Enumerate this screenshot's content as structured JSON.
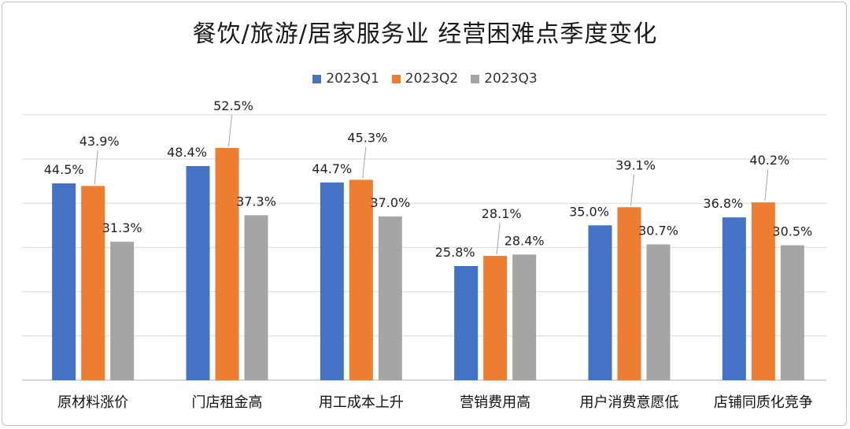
{
  "chart_data": {
    "type": "bar",
    "title": "餐饮/旅游/居家服务业 经营困难点季度变化",
    "categories": [
      "原材料涨价",
      "门店租金高",
      "用工成本上升",
      "营销费用高",
      "用户消费意愿低",
      "店铺同质化竞争"
    ],
    "series": [
      {
        "name": "2023Q1",
        "color": "#4472c4",
        "values": [
          44.5,
          48.4,
          44.7,
          25.8,
          35.0,
          36.8
        ],
        "labels": [
          "44.5%",
          "48.4%",
          "44.7%",
          "25.8%",
          "35.0%",
          "36.8%"
        ]
      },
      {
        "name": "2023Q2",
        "color": "#ed7d31",
        "values": [
          43.9,
          52.5,
          45.3,
          28.1,
          39.1,
          40.2
        ],
        "labels": [
          "43.9%",
          "52.5%",
          "45.3%",
          "28.1%",
          "39.1%",
          "40.2%"
        ]
      },
      {
        "name": "2023Q3",
        "color": "#a5a5a5",
        "values": [
          31.3,
          37.3,
          37.0,
          28.4,
          30.7,
          30.5
        ],
        "labels": [
          "31.3%",
          "37.3%",
          "37.0%",
          "28.4%",
          "30.7%",
          "30.5%"
        ]
      }
    ],
    "ylim": [
      0,
      60
    ],
    "grid": true,
    "legend_position": "top"
  }
}
